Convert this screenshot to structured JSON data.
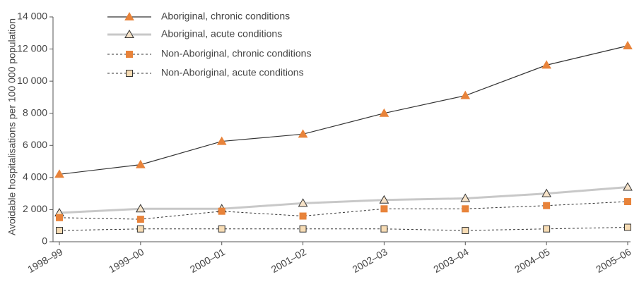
{
  "chart_data": {
    "type": "line",
    "ylabel": "Avoidable hospitalisations per 100 000 population",
    "categories": [
      "1998–99",
      "1999–00",
      "2000–01",
      "2001–02",
      "2002–03",
      "2003–04",
      "2004–05",
      "2005–06"
    ],
    "ylim": [
      0,
      14000
    ],
    "yticks": [
      0,
      {
        "value": 2000,
        "label": "2 000"
      },
      {
        "value": 4000,
        "label": "4 000"
      },
      {
        "value": 6000,
        "label": "6 000"
      },
      {
        "value": 8000,
        "label": "8 000"
      },
      {
        "value": 10000,
        "label": "10 000"
      },
      {
        "value": 12000,
        "label": "12 000"
      },
      {
        "value": 14000,
        "label": "14 000"
      }
    ],
    "legend": "upper left",
    "series": [
      {
        "name": "Aboriginal, chronic conditions",
        "color": "#333333",
        "marker": "triangle",
        "marker_color": "#e8833a",
        "line_style": "solid",
        "values": [
          4200,
          4800,
          6250,
          6700,
          8000,
          9100,
          11000,
          12200
        ]
      },
      {
        "name": "Aboriginal, acute conditions",
        "color": "#c8c8c8",
        "marker": "triangle",
        "marker_color": "#f7e3c8",
        "line_style": "thick",
        "values": [
          1800,
          2050,
          2050,
          2400,
          2600,
          2700,
          3000,
          3400
        ]
      },
      {
        "name": "Non-Aboriginal, chronic conditions",
        "color": "#333333",
        "marker": "square",
        "marker_color": "#e8833a",
        "line_style": "dashed",
        "values": [
          1500,
          1400,
          1900,
          1600,
          2050,
          2050,
          2250,
          2500
        ]
      },
      {
        "name": "Non-Aboriginal, acute conditions",
        "color": "#333333",
        "marker": "square",
        "marker_color": "#f7dcb4",
        "line_style": "dashed",
        "values": [
          700,
          800,
          800,
          800,
          800,
          700,
          800,
          900
        ]
      }
    ]
  }
}
